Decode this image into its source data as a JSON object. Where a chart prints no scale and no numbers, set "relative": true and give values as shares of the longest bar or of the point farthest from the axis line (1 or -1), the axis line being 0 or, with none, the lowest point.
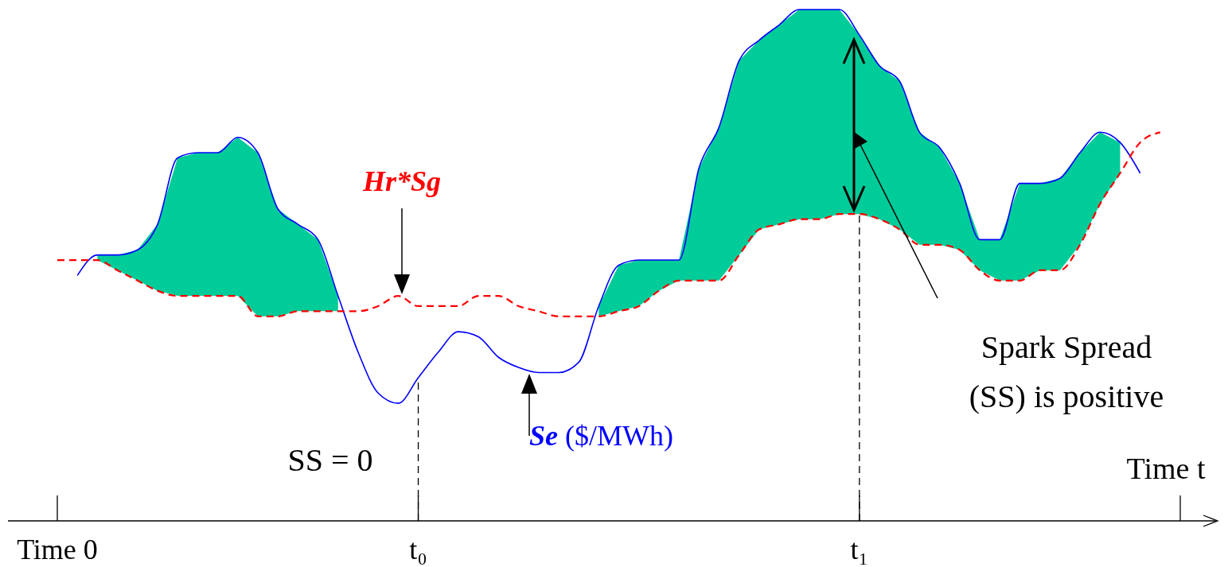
{
  "chart_data": {
    "type": "line",
    "relative": true,
    "xlabel": "Time t",
    "legend": false,
    "grid": false,
    "categories": [
      "Time 0",
      null,
      null,
      null,
      null,
      null,
      null,
      null,
      null,
      null,
      null,
      null,
      null,
      null,
      null,
      null,
      null,
      null,
      "t₀",
      null,
      null,
      null,
      null,
      null,
      null,
      null,
      null,
      null,
      null,
      null,
      null,
      null,
      null,
      null,
      null,
      null,
      null,
      null,
      null,
      null,
      "t₁",
      null,
      null,
      null,
      null,
      null,
      null,
      null,
      null,
      null,
      null,
      null,
      null,
      null,
      null,
      null,
      null
    ],
    "series": [
      {
        "name": "Se ($/MWh)",
        "color": "#0000ff",
        "line_style": "solid",
        "values": [
          null,
          0.48,
          0.52,
          0.52,
          0.53,
          0.58,
          0.71,
          0.72,
          0.72,
          0.75,
          0.72,
          0.61,
          0.58,
          0.55,
          0.44,
          0.33,
          0.25,
          0.23,
          0.28,
          0.33,
          0.37,
          0.36,
          0.32,
          0.3,
          0.29,
          0.29,
          0.31,
          0.42,
          0.5,
          0.51,
          0.51,
          0.51,
          0.69,
          0.77,
          0.9,
          0.94,
          0.97,
          1.0,
          1.0,
          1.0,
          0.95,
          0.89,
          0.86,
          0.76,
          0.73,
          0.66,
          0.55,
          0.55,
          0.66,
          0.66,
          0.67,
          0.72,
          0.76,
          0.74,
          0.68,
          null,
          null
        ]
      },
      {
        "name": "Hr*Sg",
        "color": "#ff0000",
        "line_style": "dashed",
        "values": [
          0.51,
          0.51,
          0.51,
          0.49,
          0.47,
          0.45,
          0.44,
          0.44,
          0.44,
          0.44,
          0.4,
          0.4,
          0.41,
          0.41,
          0.41,
          0.41,
          0.42,
          0.44,
          0.42,
          0.42,
          0.42,
          0.44,
          0.44,
          0.42,
          0.41,
          0.4,
          0.4,
          0.4,
          0.41,
          0.42,
          0.45,
          0.47,
          0.47,
          0.47,
          0.52,
          0.57,
          0.58,
          0.59,
          0.59,
          0.6,
          0.6,
          0.59,
          0.57,
          0.54,
          0.54,
          0.53,
          0.49,
          0.47,
          0.47,
          0.49,
          0.49,
          0.54,
          0.62,
          0.68,
          0.74,
          0.76,
          null
        ]
      },
      {
        "type": "area",
        "color": "#00cc99",
        "values": [
          null,
          null,
          0.52,
          0.52,
          0.53,
          0.58,
          0.71,
          0.72,
          0.72,
          0.75,
          0.72,
          0.61,
          0.58,
          0.55,
          0.44,
          null,
          null,
          null,
          null,
          null,
          null,
          null,
          null,
          null,
          null,
          null,
          null,
          0.42,
          0.5,
          0.51,
          0.51,
          0.51,
          0.69,
          0.77,
          0.9,
          0.94,
          0.97,
          1.0,
          1.0,
          1.0,
          0.95,
          0.89,
          0.86,
          0.76,
          0.73,
          0.66,
          0.55,
          0.55,
          0.66,
          0.66,
          0.67,
          0.72,
          0.76,
          0.74,
          null,
          null,
          null
        ]
      }
    ],
    "ref_lines": [
      {
        "axis": "x",
        "value": "t₀",
        "line_style": "dashed",
        "color": "#000000"
      },
      {
        "axis": "x",
        "value": "t₁",
        "line_style": "dashed",
        "color": "#000000"
      }
    ],
    "annotations": [
      "SS = 0",
      "Spark Spread (SS) is positive"
    ]
  }
}
